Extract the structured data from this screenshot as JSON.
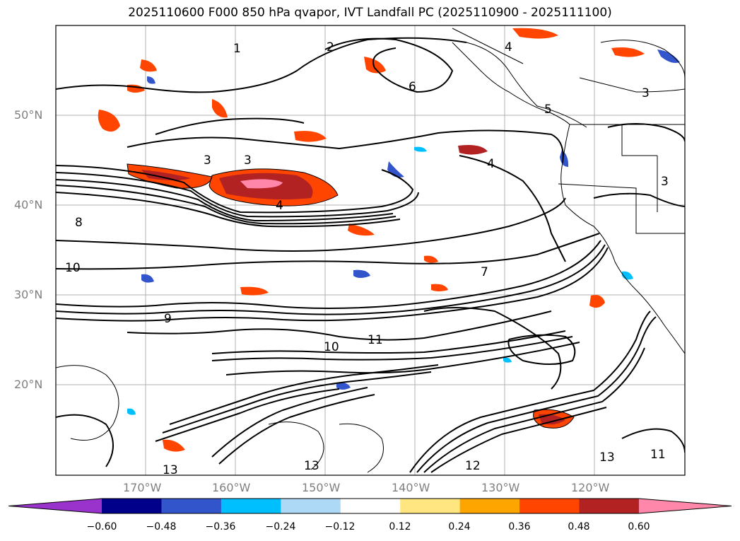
{
  "title": "2025110600 F000 850 hPa qvapor, IVT Landfall PC (2025110900 - 2025111100)",
  "map": {
    "lat_labels": [
      "50°N",
      "40°N",
      "30°N",
      "20°N"
    ],
    "lon_labels": [
      "170°W",
      "160°W",
      "150°W",
      "140°W",
      "130°W",
      "120°W"
    ],
    "lat_range": [
      10,
      60
    ],
    "lon_range": [
      -180,
      -110
    ],
    "contour_labels": [
      "1",
      "2",
      "3",
      "4",
      "5",
      "6",
      "7",
      "8",
      "9",
      "10",
      "11",
      "12",
      "13"
    ]
  },
  "colorbar": {
    "tick_labels": [
      "−0.60",
      "−0.48",
      "−0.36",
      "−0.24",
      "−0.12",
      "0.12",
      "0.24",
      "0.36",
      "0.48",
      "0.60"
    ],
    "colors": [
      "#9933cc",
      "#00008b",
      "#3355cc",
      "#00bfff",
      "#add8f6",
      "#ffffff",
      "#ffe680",
      "#ffa500",
      "#ff4500",
      "#b22222",
      "#ff88aa"
    ]
  }
}
